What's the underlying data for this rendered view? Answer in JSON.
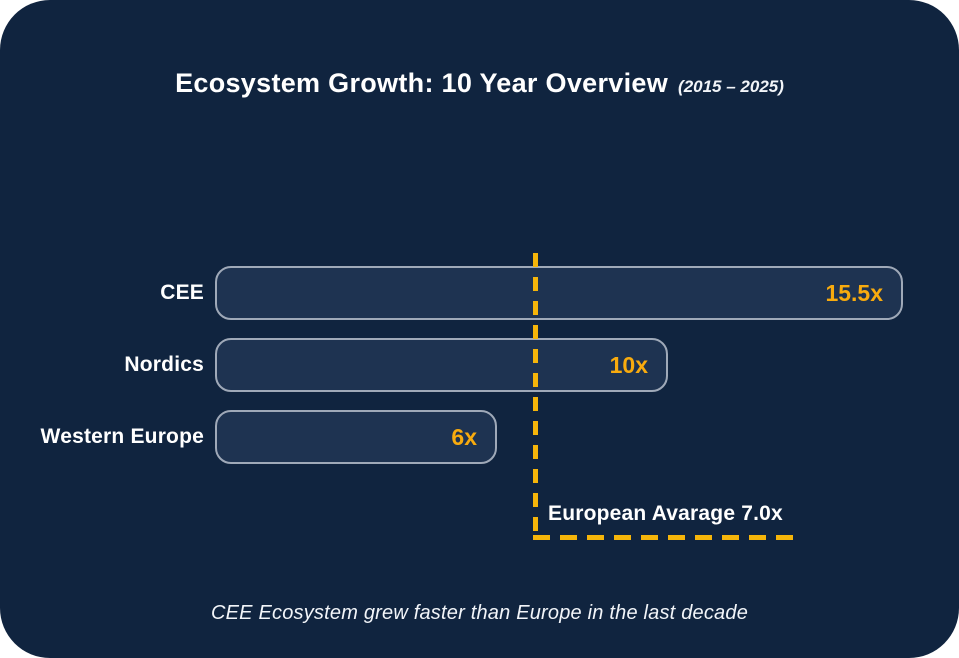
{
  "card": {
    "title": "Ecosystem Growth: 10 Year Overview",
    "title_period": "(2015 – 2025)",
    "caption": "CEE Ecosystem grew faster than Europe in the last decade"
  },
  "chart_data": {
    "type": "bar",
    "orientation": "horizontal",
    "title": "Ecosystem Growth: 10 Year Overview (2015 – 2025)",
    "categories": [
      "CEE",
      "Nordics",
      "Western Europe"
    ],
    "values": [
      15.5,
      10,
      6
    ],
    "value_labels": [
      "15.5x",
      "10x",
      "6x"
    ],
    "reference_line": {
      "label": "European Avarage 7.0x",
      "value": 7.0
    },
    "xlim": [
      0,
      16.5
    ],
    "grid": false,
    "legend": "none",
    "colors": {
      "background": "#10243F",
      "bar_fill": "#1E3351",
      "bar_border": "#9FA9B8",
      "accent_value_text": "#F8AB0E",
      "accent_dash": "#F5B50A",
      "text": "#FFFFFF"
    }
  }
}
